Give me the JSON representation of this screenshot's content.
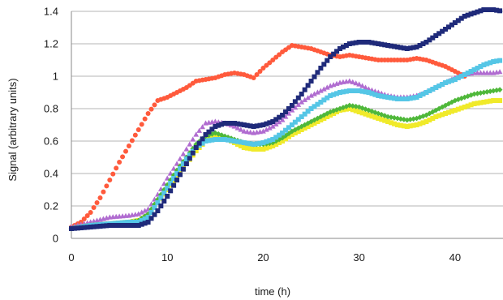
{
  "chart_data": {
    "type": "scatter",
    "xlabel": "time (h)",
    "ylabel": "Signal (arbitrary units)",
    "xlim": [
      0,
      45
    ],
    "ylim": [
      0,
      1.4
    ],
    "xticks": [
      "0",
      "10",
      "20",
      "30",
      "40"
    ],
    "yticks": [
      "0",
      "0.2",
      "0.4",
      "0.6",
      "0.8",
      "1",
      "1.2",
      "1.4"
    ],
    "grid": "horizontal",
    "legend": "none",
    "series": [
      {
        "color": "#ff5a3c",
        "marker": "circle",
        "points": [
          [
            0,
            0.07
          ],
          [
            1,
            0.1
          ],
          [
            2,
            0.16
          ],
          [
            3,
            0.25
          ],
          [
            4,
            0.36
          ],
          [
            5,
            0.47
          ],
          [
            6,
            0.57
          ],
          [
            7,
            0.67
          ],
          [
            8,
            0.77
          ],
          [
            9,
            0.85
          ],
          [
            10,
            0.87
          ],
          [
            11,
            0.9
          ],
          [
            12,
            0.93
          ],
          [
            13,
            0.97
          ],
          [
            14,
            0.98
          ],
          [
            15,
            0.99
          ],
          [
            16,
            1.01
          ],
          [
            17,
            1.02
          ],
          [
            18,
            1.01
          ],
          [
            19,
            0.99
          ],
          [
            20,
            1.05
          ],
          [
            21,
            1.1
          ],
          [
            22,
            1.15
          ],
          [
            23,
            1.19
          ],
          [
            24,
            1.18
          ],
          [
            25,
            1.17
          ],
          [
            26,
            1.15
          ],
          [
            27,
            1.13
          ],
          [
            28,
            1.12
          ],
          [
            29,
            1.13
          ],
          [
            30,
            1.12
          ],
          [
            31,
            1.11
          ],
          [
            32,
            1.1
          ],
          [
            33,
            1.1
          ],
          [
            34,
            1.1
          ],
          [
            35,
            1.1
          ],
          [
            36,
            1.11
          ],
          [
            37,
            1.1
          ],
          [
            38,
            1.08
          ],
          [
            39,
            1.06
          ],
          [
            40,
            1.03
          ],
          [
            41,
            1.0
          ]
        ]
      },
      {
        "color": "#b06cd0",
        "marker": "triangle",
        "points": [
          [
            0,
            0.07
          ],
          [
            2,
            0.1
          ],
          [
            4,
            0.13
          ],
          [
            6,
            0.14
          ],
          [
            7,
            0.15
          ],
          [
            8,
            0.18
          ],
          [
            9,
            0.27
          ],
          [
            10,
            0.37
          ],
          [
            11,
            0.46
          ],
          [
            12,
            0.55
          ],
          [
            13,
            0.64
          ],
          [
            14,
            0.71
          ],
          [
            15,
            0.72
          ],
          [
            16,
            0.71
          ],
          [
            17,
            0.69
          ],
          [
            18,
            0.66
          ],
          [
            19,
            0.65
          ],
          [
            20,
            0.66
          ],
          [
            21,
            0.69
          ],
          [
            22,
            0.73
          ],
          [
            23,
            0.79
          ],
          [
            24,
            0.84
          ],
          [
            25,
            0.88
          ],
          [
            26,
            0.91
          ],
          [
            27,
            0.94
          ],
          [
            28,
            0.96
          ],
          [
            29,
            0.97
          ],
          [
            30,
            0.95
          ],
          [
            31,
            0.92
          ],
          [
            32,
            0.9
          ],
          [
            33,
            0.88
          ],
          [
            34,
            0.87
          ],
          [
            35,
            0.87
          ],
          [
            36,
            0.88
          ],
          [
            37,
            0.9
          ],
          [
            38,
            0.93
          ],
          [
            39,
            0.96
          ],
          [
            40,
            0.99
          ],
          [
            41,
            1.01
          ],
          [
            42,
            1.02
          ],
          [
            43,
            1.02
          ],
          [
            44,
            1.02
          ],
          [
            45,
            1.03
          ]
        ]
      },
      {
        "color": "#f0ea2a",
        "marker": "square",
        "points": [
          [
            0,
            0.06
          ],
          [
            2,
            0.08
          ],
          [
            4,
            0.09
          ],
          [
            6,
            0.1
          ],
          [
            7,
            0.11
          ],
          [
            8,
            0.14
          ],
          [
            9,
            0.22
          ],
          [
            10,
            0.3
          ],
          [
            11,
            0.38
          ],
          [
            12,
            0.46
          ],
          [
            13,
            0.54
          ],
          [
            14,
            0.6
          ],
          [
            15,
            0.63
          ],
          [
            16,
            0.62
          ],
          [
            17,
            0.59
          ],
          [
            18,
            0.56
          ],
          [
            19,
            0.55
          ],
          [
            20,
            0.55
          ],
          [
            21,
            0.57
          ],
          [
            22,
            0.6
          ],
          [
            23,
            0.64
          ],
          [
            24,
            0.67
          ],
          [
            25,
            0.7
          ],
          [
            26,
            0.73
          ],
          [
            27,
            0.76
          ],
          [
            28,
            0.79
          ],
          [
            29,
            0.8
          ],
          [
            30,
            0.78
          ],
          [
            31,
            0.76
          ],
          [
            32,
            0.74
          ],
          [
            33,
            0.72
          ],
          [
            34,
            0.7
          ],
          [
            35,
            0.69
          ],
          [
            36,
            0.7
          ],
          [
            37,
            0.72
          ],
          [
            38,
            0.75
          ],
          [
            39,
            0.77
          ],
          [
            40,
            0.79
          ],
          [
            41,
            0.81
          ],
          [
            42,
            0.83
          ],
          [
            43,
            0.84
          ],
          [
            44,
            0.85
          ],
          [
            45,
            0.85
          ]
        ]
      },
      {
        "color": "#4fb83a",
        "marker": "diamond",
        "points": [
          [
            0,
            0.06
          ],
          [
            2,
            0.08
          ],
          [
            4,
            0.09
          ],
          [
            6,
            0.1
          ],
          [
            7,
            0.11
          ],
          [
            8,
            0.15
          ],
          [
            9,
            0.24
          ],
          [
            10,
            0.33
          ],
          [
            11,
            0.42
          ],
          [
            12,
            0.5
          ],
          [
            13,
            0.58
          ],
          [
            14,
            0.63
          ],
          [
            15,
            0.65
          ],
          [
            16,
            0.63
          ],
          [
            17,
            0.61
          ],
          [
            18,
            0.59
          ],
          [
            19,
            0.58
          ],
          [
            20,
            0.58
          ],
          [
            21,
            0.59
          ],
          [
            22,
            0.62
          ],
          [
            23,
            0.66
          ],
          [
            24,
            0.69
          ],
          [
            25,
            0.72
          ],
          [
            26,
            0.75
          ],
          [
            27,
            0.78
          ],
          [
            28,
            0.8
          ],
          [
            29,
            0.82
          ],
          [
            30,
            0.81
          ],
          [
            31,
            0.79
          ],
          [
            32,
            0.77
          ],
          [
            33,
            0.75
          ],
          [
            34,
            0.74
          ],
          [
            35,
            0.73
          ],
          [
            36,
            0.74
          ],
          [
            37,
            0.76
          ],
          [
            38,
            0.79
          ],
          [
            39,
            0.82
          ],
          [
            40,
            0.85
          ],
          [
            41,
            0.87
          ],
          [
            42,
            0.89
          ],
          [
            43,
            0.9
          ],
          [
            44,
            0.91
          ],
          [
            45,
            0.92
          ]
        ]
      },
      {
        "color": "#55c6e6",
        "marker": "square",
        "points": [
          [
            0,
            0.06
          ],
          [
            2,
            0.08
          ],
          [
            4,
            0.09
          ],
          [
            6,
            0.1
          ],
          [
            7,
            0.1
          ],
          [
            8,
            0.13
          ],
          [
            9,
            0.22
          ],
          [
            10,
            0.31
          ],
          [
            11,
            0.4
          ],
          [
            12,
            0.49
          ],
          [
            13,
            0.56
          ],
          [
            14,
            0.6
          ],
          [
            15,
            0.61
          ],
          [
            16,
            0.61
          ],
          [
            17,
            0.6
          ],
          [
            18,
            0.59
          ],
          [
            19,
            0.58
          ],
          [
            20,
            0.59
          ],
          [
            21,
            0.61
          ],
          [
            22,
            0.65
          ],
          [
            23,
            0.7
          ],
          [
            24,
            0.75
          ],
          [
            25,
            0.8
          ],
          [
            26,
            0.84
          ],
          [
            27,
            0.88
          ],
          [
            28,
            0.9
          ],
          [
            29,
            0.91
          ],
          [
            30,
            0.91
          ],
          [
            31,
            0.9
          ],
          [
            32,
            0.88
          ],
          [
            33,
            0.87
          ],
          [
            34,
            0.86
          ],
          [
            35,
            0.86
          ],
          [
            36,
            0.87
          ],
          [
            37,
            0.9
          ],
          [
            38,
            0.93
          ],
          [
            39,
            0.96
          ],
          [
            40,
            0.98
          ],
          [
            41,
            1.01
          ],
          [
            42,
            1.04
          ],
          [
            43,
            1.07
          ],
          [
            44,
            1.09
          ],
          [
            45,
            1.1
          ]
        ]
      },
      {
        "color": "#1f2a7a",
        "marker": "square",
        "points": [
          [
            0,
            0.06
          ],
          [
            2,
            0.07
          ],
          [
            4,
            0.08
          ],
          [
            6,
            0.08
          ],
          [
            7,
            0.08
          ],
          [
            8,
            0.1
          ],
          [
            9,
            0.17
          ],
          [
            10,
            0.26
          ],
          [
            11,
            0.36
          ],
          [
            12,
            0.46
          ],
          [
            13,
            0.56
          ],
          [
            14,
            0.64
          ],
          [
            15,
            0.69
          ],
          [
            16,
            0.71
          ],
          [
            17,
            0.71
          ],
          [
            18,
            0.7
          ],
          [
            19,
            0.69
          ],
          [
            20,
            0.7
          ],
          [
            21,
            0.72
          ],
          [
            22,
            0.76
          ],
          [
            23,
            0.82
          ],
          [
            24,
            0.89
          ],
          [
            25,
            0.97
          ],
          [
            26,
            1.05
          ],
          [
            27,
            1.12
          ],
          [
            28,
            1.17
          ],
          [
            29,
            1.2
          ],
          [
            30,
            1.21
          ],
          [
            31,
            1.21
          ],
          [
            32,
            1.2
          ],
          [
            33,
            1.19
          ],
          [
            34,
            1.18
          ],
          [
            35,
            1.17
          ],
          [
            36,
            1.18
          ],
          [
            37,
            1.21
          ],
          [
            38,
            1.25
          ],
          [
            39,
            1.29
          ],
          [
            40,
            1.33
          ],
          [
            41,
            1.37
          ],
          [
            42,
            1.39
          ],
          [
            43,
            1.41
          ],
          [
            44,
            1.41
          ],
          [
            45,
            1.4
          ]
        ]
      }
    ]
  }
}
